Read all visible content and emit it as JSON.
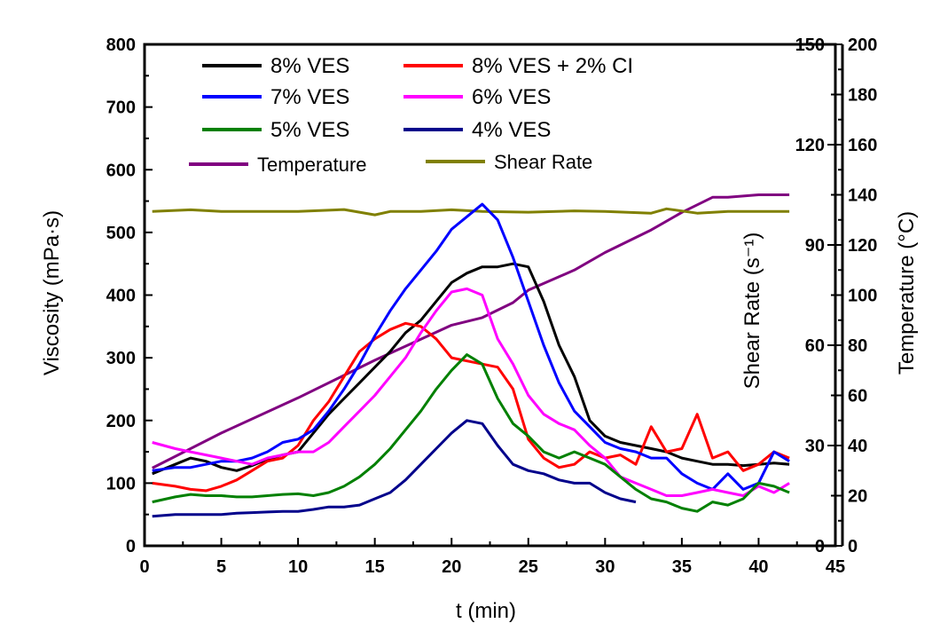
{
  "chart_data": {
    "type": "line",
    "xlabel": "t (min)",
    "ylabel": "Viscosity (mPa·s)",
    "y2label": "Shear Rate (s⁻¹)",
    "y3label": "Temperature (°C)",
    "xlim": [
      0,
      45
    ],
    "ylim": [
      0,
      800
    ],
    "y2lim": [
      0,
      150
    ],
    "y3lim": [
      0,
      200
    ],
    "xticks": [
      "0",
      "5",
      "10",
      "15",
      "20",
      "25",
      "30",
      "35",
      "40",
      "45"
    ],
    "yticks": [
      "0",
      "100",
      "200",
      "300",
      "400",
      "500",
      "600",
      "700",
      "800"
    ],
    "y2ticks": [
      "0",
      "30",
      "60",
      "90",
      "120",
      "150"
    ],
    "y3ticks": [
      "0",
      "20",
      "40",
      "60",
      "80",
      "100",
      "120",
      "140",
      "160",
      "180",
      "200"
    ],
    "grid": false,
    "legend_position": "top-left",
    "series": [
      {
        "name": "8% VES",
        "axis": "viscosity",
        "color": "#000000",
        "x": [
          0.5,
          2,
          3,
          4,
          5,
          6,
          7,
          8,
          9,
          10,
          11,
          12,
          13,
          14,
          15,
          16,
          17,
          18,
          19,
          20,
          21,
          22,
          23,
          24,
          25,
          26,
          27,
          28,
          29,
          30,
          31,
          32,
          33,
          34,
          35,
          36,
          37,
          38,
          39,
          40,
          41,
          42
        ],
        "values": [
          115,
          130,
          140,
          135,
          125,
          120,
          128,
          138,
          145,
          150,
          180,
          210,
          235,
          260,
          285,
          310,
          340,
          360,
          390,
          420,
          435,
          445,
          445,
          450,
          445,
          390,
          320,
          270,
          200,
          175,
          165,
          160,
          155,
          150,
          140,
          135,
          130,
          130,
          128,
          130,
          132,
          130
        ]
      },
      {
        "name": "8% VES + 2% CI",
        "axis": "viscosity",
        "color": "#ff0000",
        "x": [
          0.5,
          2,
          3,
          4,
          5,
          6,
          7,
          8,
          9,
          10,
          11,
          12,
          13,
          14,
          15,
          16,
          17,
          18,
          19,
          20,
          21,
          22,
          23,
          24,
          25,
          26,
          27,
          28,
          29,
          30,
          31,
          32,
          33,
          34,
          35,
          36,
          37,
          38,
          39,
          40,
          41,
          42
        ],
        "values": [
          100,
          95,
          90,
          88,
          95,
          105,
          120,
          135,
          140,
          160,
          200,
          230,
          270,
          310,
          330,
          345,
          355,
          350,
          330,
          300,
          295,
          290,
          285,
          250,
          170,
          140,
          125,
          130,
          150,
          140,
          145,
          130,
          190,
          150,
          155,
          210,
          140,
          150,
          120,
          130,
          150,
          140
        ]
      },
      {
        "name": "7% VES",
        "axis": "viscosity",
        "color": "#0000ff",
        "x": [
          0.5,
          2,
          3,
          4,
          5,
          6,
          7,
          8,
          9,
          10,
          11,
          12,
          13,
          14,
          15,
          16,
          17,
          18,
          19,
          20,
          21,
          22,
          23,
          24,
          25,
          26,
          27,
          28,
          29,
          30,
          31,
          32,
          33,
          34,
          35,
          36,
          37,
          38,
          39,
          40,
          41,
          42
        ],
        "values": [
          120,
          125,
          125,
          130,
          135,
          135,
          140,
          150,
          165,
          170,
          185,
          215,
          250,
          290,
          335,
          375,
          410,
          440,
          470,
          505,
          525,
          545,
          520,
          460,
          390,
          320,
          260,
          215,
          190,
          165,
          155,
          150,
          140,
          140,
          115,
          100,
          90,
          115,
          90,
          100,
          150,
          135
        ]
      },
      {
        "name": "6% VES",
        "axis": "viscosity",
        "color": "#ff00ff",
        "x": [
          0.5,
          2,
          3,
          4,
          5,
          6,
          7,
          8,
          9,
          10,
          11,
          12,
          13,
          14,
          15,
          16,
          17,
          18,
          19,
          20,
          21,
          22,
          23,
          24,
          25,
          26,
          27,
          28,
          29,
          30,
          31,
          32,
          33,
          34,
          35,
          36,
          37,
          38,
          39,
          40,
          41,
          42
        ],
        "values": [
          165,
          155,
          150,
          145,
          140,
          135,
          130,
          140,
          145,
          150,
          150,
          165,
          190,
          215,
          240,
          270,
          300,
          340,
          375,
          405,
          410,
          400,
          330,
          290,
          240,
          210,
          195,
          185,
          160,
          140,
          110,
          100,
          90,
          80,
          80,
          85,
          90,
          85,
          80,
          95,
          85,
          100
        ]
      },
      {
        "name": "5% VES",
        "axis": "viscosity",
        "color": "#008000",
        "x": [
          0.5,
          2,
          3,
          4,
          5,
          6,
          7,
          8,
          9,
          10,
          11,
          12,
          13,
          14,
          15,
          16,
          17,
          18,
          19,
          20,
          21,
          22,
          23,
          24,
          25,
          26,
          27,
          28,
          29,
          30,
          31,
          32,
          33,
          34,
          35,
          36,
          37,
          38,
          39,
          40,
          41,
          42
        ],
        "values": [
          70,
          78,
          82,
          80,
          80,
          78,
          78,
          80,
          82,
          83,
          80,
          85,
          95,
          110,
          130,
          155,
          185,
          215,
          250,
          280,
          305,
          290,
          235,
          195,
          175,
          150,
          140,
          150,
          140,
          130,
          110,
          90,
          75,
          70,
          60,
          55,
          70,
          65,
          75,
          100,
          95,
          85
        ]
      },
      {
        "name": "4% VES",
        "axis": "viscosity",
        "color": "#00008b",
        "x": [
          0.5,
          2,
          3,
          4,
          5,
          6,
          7,
          8,
          9,
          10,
          11,
          12,
          13,
          14,
          15,
          16,
          17,
          18,
          19,
          20,
          21,
          22,
          23,
          24,
          25,
          26,
          27,
          28,
          29,
          30,
          31,
          32
        ],
        "values": [
          47,
          50,
          50,
          50,
          50,
          52,
          53,
          54,
          55,
          55,
          58,
          62,
          62,
          65,
          75,
          85,
          105,
          130,
          155,
          180,
          200,
          195,
          160,
          130,
          120,
          115,
          105,
          100,
          100,
          85,
          75,
          70
        ]
      },
      {
        "name": "Temperature",
        "axis": "temperature",
        "color": "#800080",
        "x": [
          0.5,
          5,
          10,
          15,
          20,
          22,
          24,
          25,
          28,
          30,
          33,
          35,
          37,
          38,
          40,
          42
        ],
        "values": [
          31,
          45,
          59,
          74,
          88,
          91,
          97,
          102,
          110,
          117,
          126,
          133,
          139,
          139,
          140,
          140
        ]
      },
      {
        "name": "Shear Rate",
        "axis": "shear_rate",
        "color": "#808000",
        "x": [
          0.5,
          3,
          5,
          8,
          10,
          13,
          15,
          16,
          18,
          20,
          22,
          25,
          28,
          30,
          33,
          34,
          36,
          38,
          40,
          42
        ],
        "values": [
          100,
          100.5,
          100,
          100,
          100,
          100.6,
          99,
          100,
          100,
          100.5,
          100,
          99.8,
          100.2,
          100,
          99.5,
          100.8,
          99.5,
          100,
          100,
          100
        ]
      }
    ]
  },
  "colors": {
    "axis": "#000000",
    "shear_rate_label": "#00ff00",
    "background": "#ffffff"
  }
}
